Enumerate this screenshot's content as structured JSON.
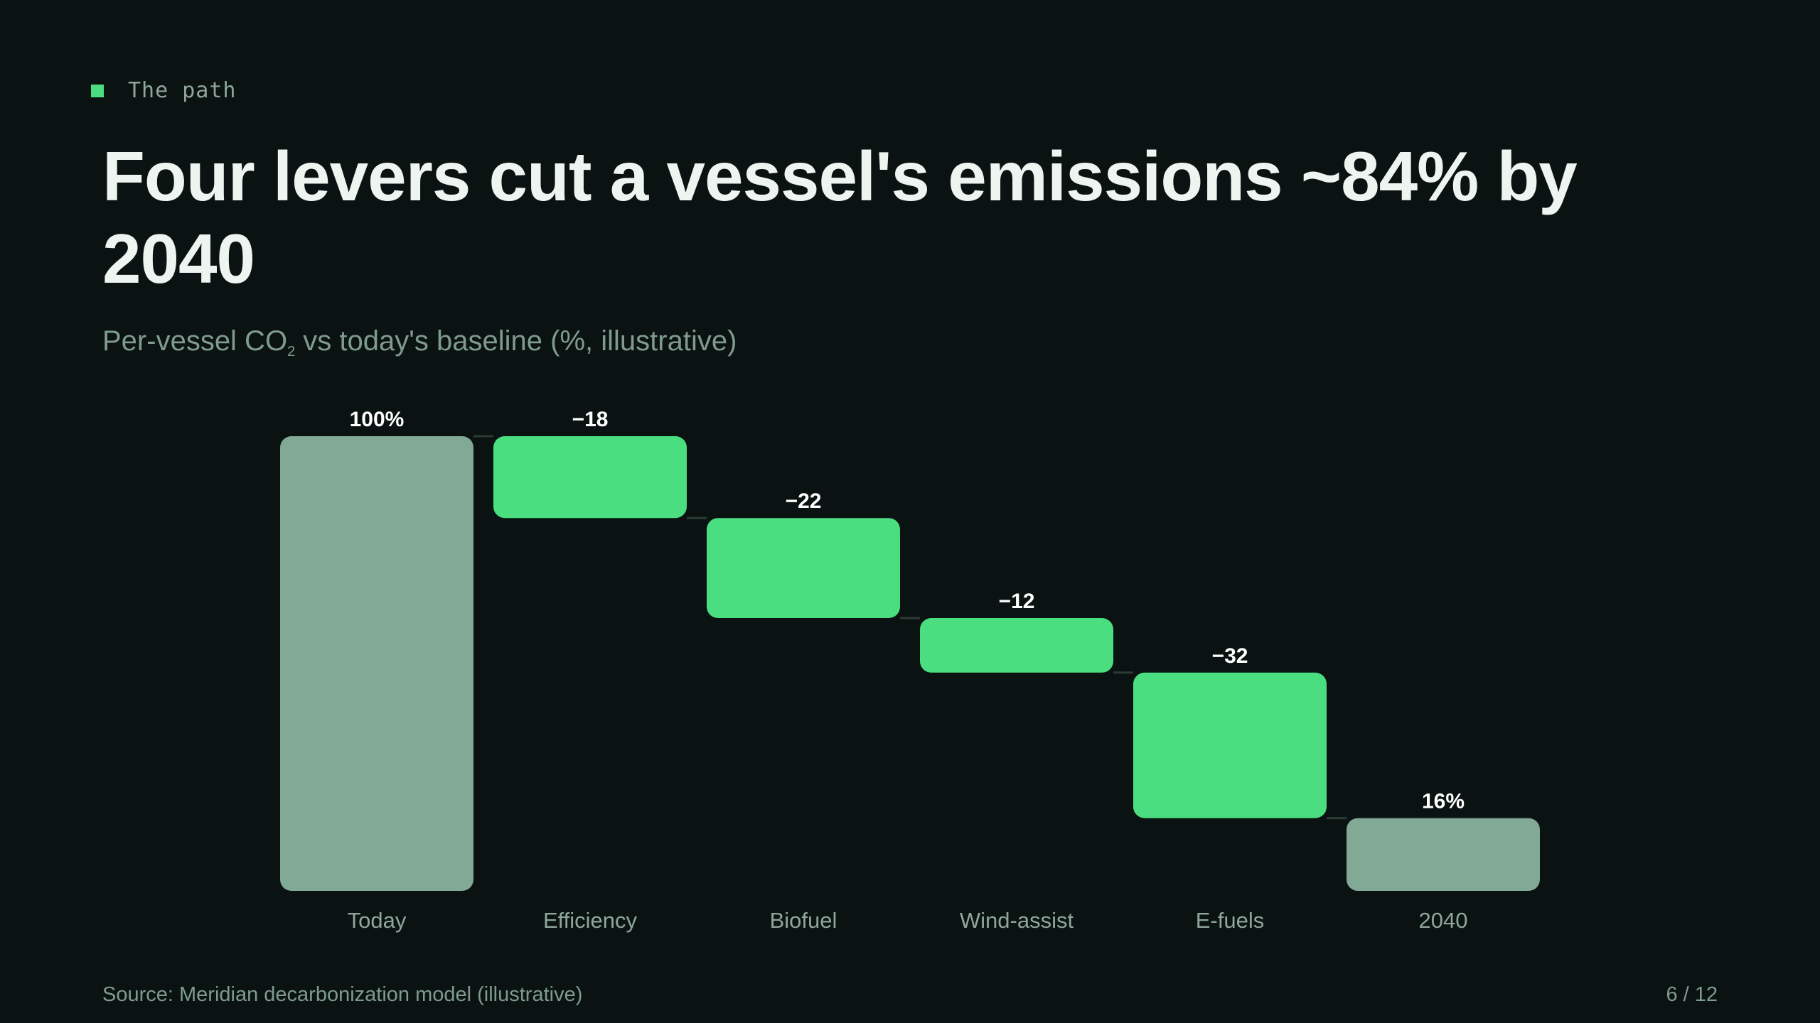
{
  "slide": {
    "eyebrow": "The path",
    "title": "Four levers cut a vessel's emissions ~84% by 2040",
    "subtitle_before": "Per-vessel CO",
    "subtitle_sub": "2",
    "subtitle_after": " vs today's baseline (%, illustrative)",
    "source": "Source: Meridian decarbonization model (illustrative)",
    "page": "6 / 12"
  },
  "colors": {
    "total_bar": "#82a896",
    "reduction_bar": "#4ade80",
    "connector": "#2b3b35",
    "value_label": "#ffffff",
    "category_label": "#8fa69b"
  },
  "chart_data": {
    "type": "bar",
    "variant": "waterfall",
    "categories": [
      "Today",
      "Efficiency",
      "Biofuel",
      "Wind-assist",
      "E-fuels",
      "2040"
    ],
    "values": [
      100,
      -18,
      -22,
      -12,
      -32,
      16
    ],
    "kinds": [
      "total",
      "delta",
      "delta",
      "delta",
      "delta",
      "total"
    ],
    "value_labels": [
      "100%",
      "−18",
      "−22",
      "−12",
      "−32",
      "16%"
    ],
    "ylim": [
      0,
      100
    ],
    "grid": false,
    "legend": "none"
  }
}
